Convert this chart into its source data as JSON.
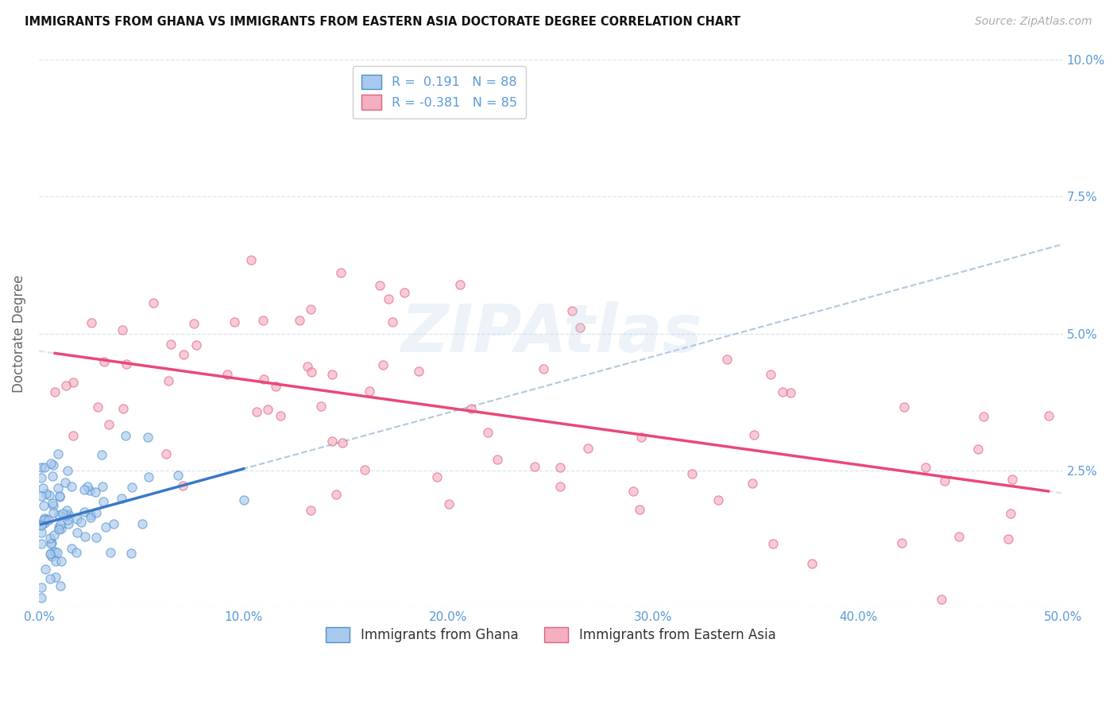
{
  "title": "IMMIGRANTS FROM GHANA VS IMMIGRANTS FROM EASTERN ASIA DOCTORATE DEGREE CORRELATION CHART",
  "source": "Source: ZipAtlas.com",
  "ylabel": "Doctorate Degree",
  "xlim": [
    0.0,
    0.5
  ],
  "ylim": [
    0.0,
    0.1
  ],
  "xtick_vals": [
    0.0,
    0.1,
    0.2,
    0.3,
    0.4,
    0.5
  ],
  "ytick_vals": [
    0.0,
    0.025,
    0.05,
    0.075,
    0.1
  ],
  "xtick_labels": [
    "0.0%",
    "10.0%",
    "20.0%",
    "30.0%",
    "40.0%",
    "50.0%"
  ],
  "ytick_labels_right": [
    "",
    "2.5%",
    "5.0%",
    "7.5%",
    "10.0%"
  ],
  "r1": 0.191,
  "n1": 88,
  "r2": -0.381,
  "n2": 85,
  "color_blue_fill": "#a8c8ee",
  "color_blue_edge": "#5090cc",
  "color_pink_fill": "#f5b0c0",
  "color_pink_edge": "#e06080",
  "color_blue_line": "#3a78c9",
  "color_pink_line": "#e84878",
  "color_dashed": "#b0c8e0",
  "background": "#ffffff",
  "grid_color": "#d8e4f0",
  "title_color": "#111111",
  "source_color": "#aaaaaa",
  "axis_tick_color": "#5a9ad9",
  "ylabel_color": "#666666",
  "legend_label_color": "#5a9ad9",
  "scatter_size": 65,
  "scatter_alpha": 0.65,
  "trend_linewidth": 2.5,
  "dashed_linewidth": 1.5,
  "ghana_seed": 77,
  "ea_seed": 33
}
